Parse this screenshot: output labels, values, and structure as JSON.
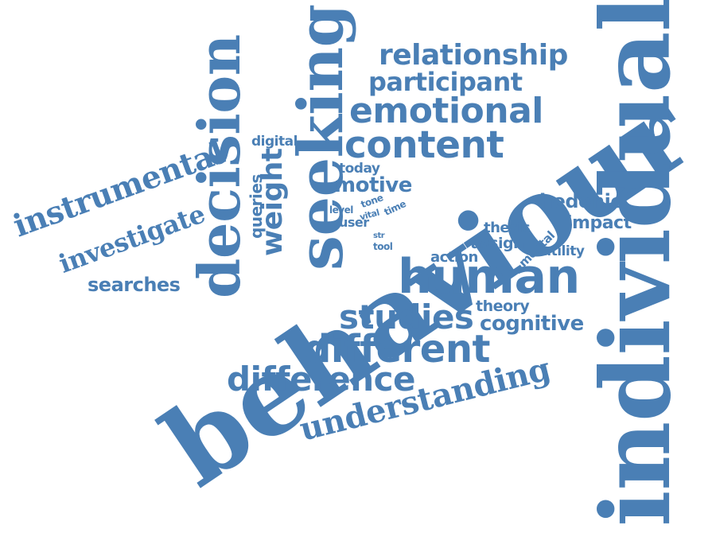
{
  "cloud": {
    "color": "#4a7fb5",
    "background": "#ffffff",
    "words": {
      "behaviour": "behaviour",
      "individual": "individual",
      "human": "human",
      "seeking": "seeking",
      "decision": "decision",
      "content": "content",
      "emotional": "emotional",
      "different": "different",
      "understanding": "understanding",
      "difference": "difference",
      "studies": "studies",
      "relationship": "relationship",
      "participant": "participant",
      "instrumental": "instrumental",
      "investigate": "investigate",
      "cognitive": "cognitive",
      "searches": "searches",
      "motive": "motive",
      "hedonic": "hedonic",
      "impact": "impact",
      "weight": "weight",
      "queries": "queries",
      "digital": "digital",
      "today": "today",
      "thesis": "thesis",
      "assign": "assign",
      "mental": "mental",
      "utility": "utility",
      "action": "action",
      "theory": "theory",
      "user": "user",
      "tone": "tone",
      "level": "level",
      "vital": "vital",
      "time": "time",
      "str": "str",
      "tool": "tool"
    }
  }
}
